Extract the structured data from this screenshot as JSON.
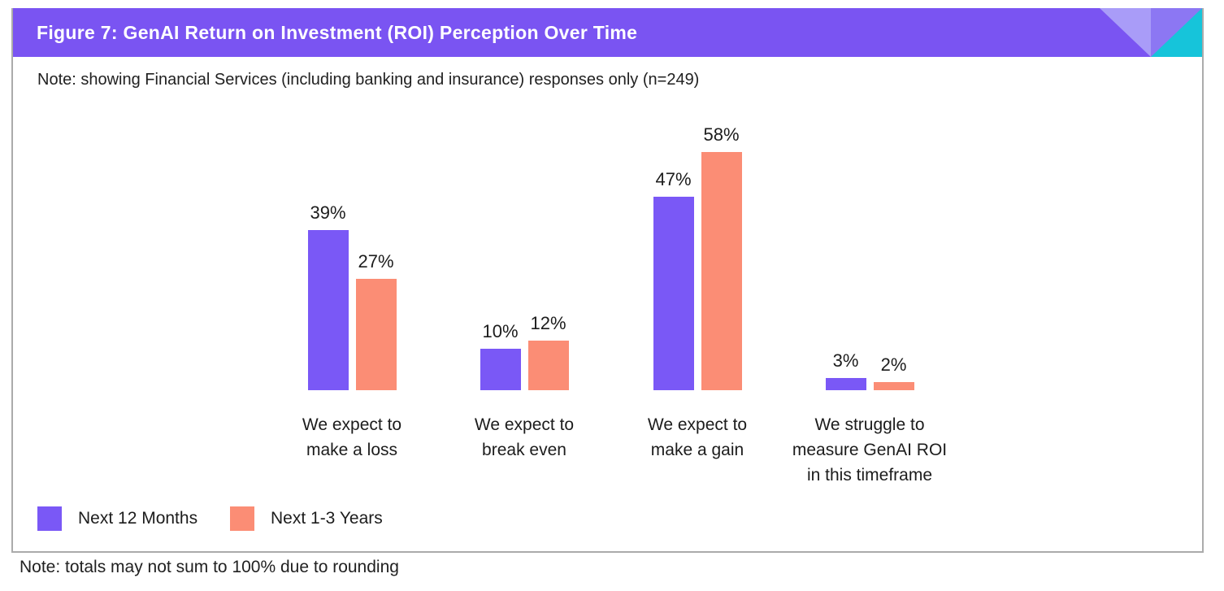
{
  "figure": {
    "title": "Figure 7: GenAI Return on Investment (ROI) Perception Over Time",
    "top_note": "Note: showing Financial Services (including banking and insurance) responses only (n=249)",
    "bottom_note": "Note: totals may not sum to 100% due to rounding"
  },
  "colors": {
    "header_bar": "#7a54f2",
    "corner_lavender": "#a99cf8",
    "corner_purple": "#8c77f3",
    "corner_teal": "#16c4da",
    "panel_border": "#ababab",
    "title_text": "#ffffff",
    "body_text": "#1e1e1e"
  },
  "chart_data": {
    "type": "bar",
    "title": "Figure 7: GenAI Return on Investment (ROI) Perception Over Time",
    "categories": [
      "We expect to\nmake a loss",
      "We expect to\nbreak even",
      "We expect to\nmake a gain",
      "We struggle to\nmeasure GenAI ROI\nin this timeframe"
    ],
    "series": [
      {
        "name": "Next 12 Months",
        "color": "#7a58f6",
        "values": [
          39,
          10,
          47,
          3
        ]
      },
      {
        "name": "Next 1-3 Years",
        "color": "#fb8d75",
        "values": [
          27,
          12,
          58,
          2
        ]
      }
    ],
    "value_suffix": "%",
    "data_labels": true,
    "grid": false,
    "axes_visible": false,
    "ylim": [
      0,
      62
    ],
    "legend_position": "bottom-left"
  }
}
